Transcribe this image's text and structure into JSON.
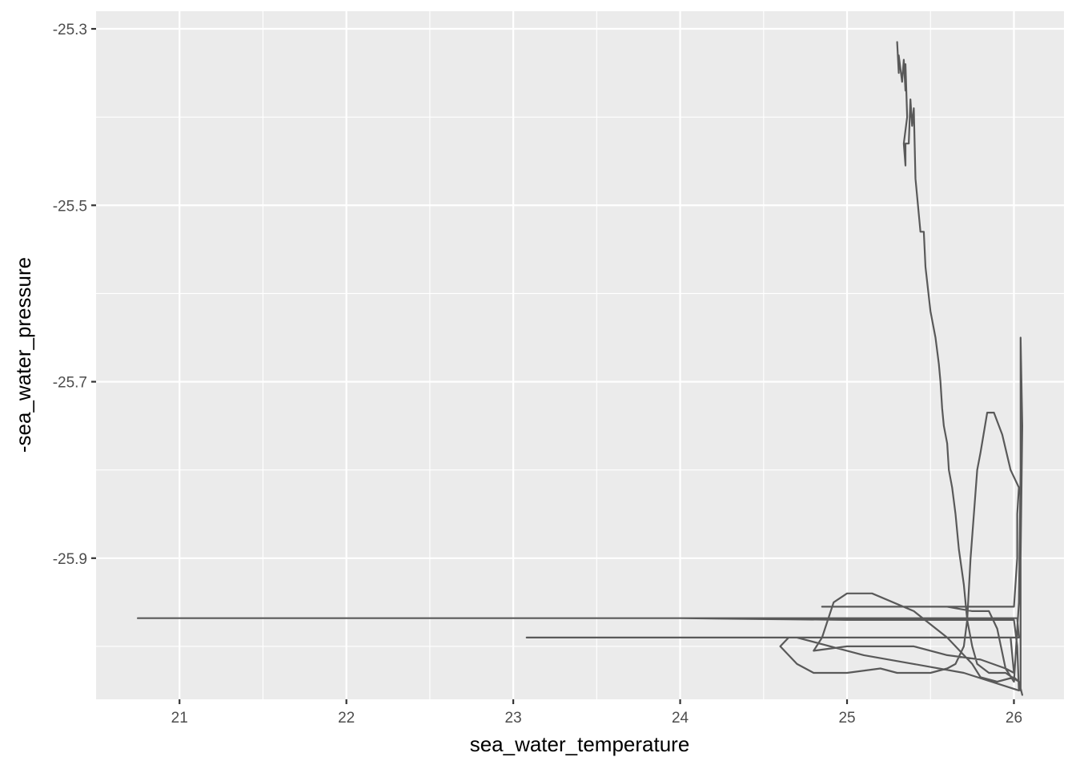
{
  "chart_data": {
    "type": "line",
    "title": "",
    "xlabel": "sea_water_temperature",
    "ylabel": "-sea_water_pressure",
    "xlim": [
      20.5,
      26.3
    ],
    "ylim": [
      -26.06,
      -25.28
    ],
    "x_ticks": [
      21,
      22,
      23,
      24,
      25,
      26
    ],
    "x_tick_labels": [
      "21",
      "22",
      "23",
      "24",
      "25",
      "26"
    ],
    "y_ticks": [
      -25.9,
      -25.7,
      -25.5,
      -25.3
    ],
    "y_tick_labels": [
      "-25.9",
      "-25.7",
      "-25.5",
      "-25.3"
    ],
    "grid": true,
    "legend": "none",
    "colors": {
      "panel": "#ebebeb",
      "grid": "#ffffff",
      "line": "#595959"
    },
    "series": [
      {
        "points": [
          [
            25.3,
            -25.315
          ],
          [
            25.31,
            -25.35
          ],
          [
            25.31,
            -25.33
          ],
          [
            25.33,
            -25.36
          ],
          [
            25.34,
            -25.335
          ],
          [
            25.35,
            -25.37
          ],
          [
            25.35,
            -25.34
          ],
          [
            25.36,
            -25.4
          ],
          [
            25.34,
            -25.43
          ],
          [
            25.35,
            -25.455
          ],
          [
            25.35,
            -25.43
          ],
          [
            25.37,
            -25.43
          ],
          [
            25.38,
            -25.38
          ],
          [
            25.39,
            -25.41
          ],
          [
            25.4,
            -25.39
          ],
          [
            25.41,
            -25.47
          ],
          [
            25.44,
            -25.53
          ],
          [
            25.46,
            -25.53
          ],
          [
            25.47,
            -25.57
          ],
          [
            25.5,
            -25.62
          ],
          [
            25.53,
            -25.65
          ],
          [
            25.55,
            -25.68
          ],
          [
            25.56,
            -25.7
          ],
          [
            25.57,
            -25.73
          ],
          [
            25.58,
            -25.75
          ],
          [
            25.6,
            -25.77
          ],
          [
            25.61,
            -25.8
          ],
          [
            25.63,
            -25.82
          ],
          [
            25.65,
            -25.85
          ],
          [
            25.67,
            -25.89
          ],
          [
            25.7,
            -25.93
          ],
          [
            25.72,
            -25.97
          ],
          [
            25.75,
            -26.0
          ],
          [
            25.78,
            -26.02
          ],
          [
            25.85,
            -26.03
          ],
          [
            25.95,
            -26.03
          ],
          [
            26.03,
            -26.04
          ],
          [
            26.04,
            -26.05
          ],
          [
            26.04,
            -25.9
          ],
          [
            26.05,
            -25.75
          ],
          [
            26.04,
            -25.65
          ],
          [
            26.04,
            -25.8
          ],
          [
            26.03,
            -25.95
          ],
          [
            26.0,
            -26.04
          ],
          [
            25.95,
            -26.025
          ],
          [
            25.9,
            -25.98
          ],
          [
            25.85,
            -25.96
          ],
          [
            25.75,
            -25.96
          ],
          [
            25.6,
            -25.955
          ],
          [
            25.4,
            -25.955
          ],
          [
            25.2,
            -25.955
          ],
          [
            24.85,
            -25.955
          ],
          [
            25.0,
            -25.955
          ],
          [
            25.5,
            -25.955
          ],
          [
            26.0,
            -25.955
          ],
          [
            26.02,
            -25.9
          ],
          [
            26.02,
            -25.85
          ],
          [
            26.03,
            -25.82
          ],
          [
            25.98,
            -25.8
          ],
          [
            25.93,
            -25.76
          ],
          [
            25.88,
            -25.735
          ],
          [
            25.84,
            -25.735
          ],
          [
            25.8,
            -25.78
          ],
          [
            25.78,
            -25.8
          ],
          [
            25.74,
            -25.9
          ],
          [
            25.72,
            -25.97
          ],
          [
            25.7,
            -26.0
          ],
          [
            25.65,
            -26.02
          ],
          [
            25.6,
            -26.025
          ],
          [
            25.5,
            -26.03
          ],
          [
            25.3,
            -26.03
          ],
          [
            25.2,
            -26.025
          ],
          [
            25.0,
            -26.03
          ],
          [
            24.8,
            -26.03
          ],
          [
            24.7,
            -26.02
          ],
          [
            24.6,
            -26.0
          ],
          [
            24.65,
            -25.99
          ],
          [
            24.7,
            -25.99
          ],
          [
            24.9,
            -26.0
          ],
          [
            25.1,
            -26.01
          ],
          [
            25.4,
            -26.02
          ],
          [
            25.7,
            -26.03
          ],
          [
            26.03,
            -26.05
          ],
          [
            26.02,
            -26.0
          ],
          [
            26.0,
            -25.97
          ],
          [
            25.5,
            -25.97
          ],
          [
            25.0,
            -25.97
          ],
          [
            24.0,
            -25.968
          ],
          [
            23.0,
            -25.968
          ],
          [
            22.0,
            -25.968
          ],
          [
            21.0,
            -25.968
          ],
          [
            20.75,
            -25.968
          ],
          [
            21.0,
            -25.968
          ],
          [
            23.0,
            -25.968
          ],
          [
            25.0,
            -25.968
          ],
          [
            26.02,
            -25.968
          ],
          [
            26.03,
            -25.99
          ],
          [
            25.5,
            -25.99
          ],
          [
            24.5,
            -25.99
          ],
          [
            23.5,
            -25.99
          ],
          [
            23.08,
            -25.99
          ],
          [
            24.0,
            -25.99
          ],
          [
            25.0,
            -25.99
          ],
          [
            25.8,
            -25.99
          ],
          [
            25.98,
            -25.99
          ],
          [
            26.0,
            -26.03
          ],
          [
            25.95,
            -26.025
          ],
          [
            25.8,
            -26.015
          ],
          [
            25.6,
            -26.01
          ],
          [
            25.4,
            -26.0
          ],
          [
            25.2,
            -26.0
          ],
          [
            25.0,
            -26.0
          ],
          [
            24.8,
            -26.005
          ],
          [
            24.85,
            -25.99
          ],
          [
            24.92,
            -25.95
          ],
          [
            25.0,
            -25.94
          ],
          [
            25.15,
            -25.94
          ],
          [
            25.4,
            -25.96
          ],
          [
            25.6,
            -25.99
          ],
          [
            25.75,
            -26.02
          ],
          [
            25.8,
            -26.035
          ],
          [
            25.9,
            -26.04
          ],
          [
            26.0,
            -26.035
          ],
          [
            26.03,
            -26.04
          ],
          [
            26.05,
            -26.055
          ]
        ]
      }
    ]
  }
}
